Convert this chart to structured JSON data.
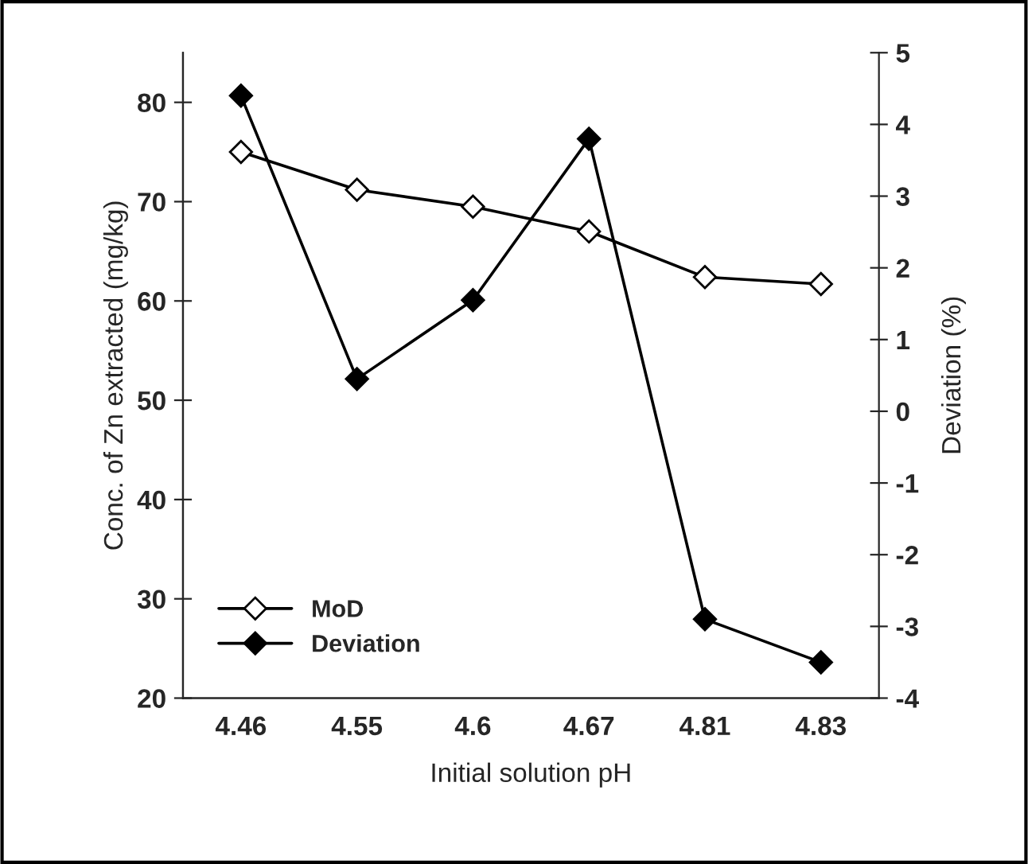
{
  "chart_data": {
    "type": "line",
    "xlabel": "Initial solution pH",
    "ylabel": "Conc. of Zn extracted (mg/kg)",
    "y2label": "Deviation (%)",
    "categories": [
      "4.46",
      "4.55",
      "4.6",
      "4.67",
      "4.81",
      "4.83"
    ],
    "series": [
      {
        "name": "MoD",
        "color": "#000000",
        "marker": "diamond",
        "values": [
          75,
          71.2,
          69.5,
          67,
          62.4,
          61.7
        ]
      },
      {
        "name": "Deviation",
        "color": "#000000",
        "marker": "diamond",
        "axis": "y2",
        "values": [
          4.4,
          0.45,
          1.55,
          3.8,
          -2.9,
          -3.5
        ]
      }
    ],
    "ylim": [
      20,
      85
    ],
    "yticks": [
      20,
      30,
      40,
      50,
      60,
      70,
      80
    ],
    "y2lim": [
      -4,
      5
    ],
    "y2ticks": [
      -4,
      -3,
      -2,
      -1,
      0,
      1,
      2,
      3,
      4,
      5
    ],
    "grid": false,
    "legend": "bottom left",
    "line_style": "solid"
  }
}
